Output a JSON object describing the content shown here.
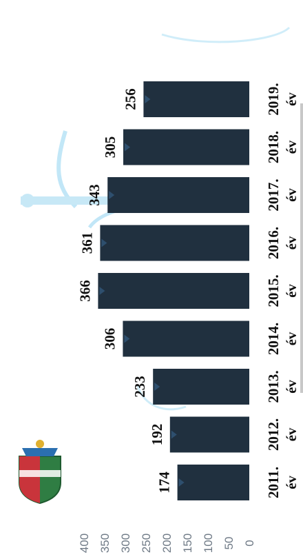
{
  "chart_data": {
    "type": "bar",
    "orientation": "rotated-90-ccw",
    "title": "",
    "categories": [
      "2011. év",
      "2012. év",
      "2013. év",
      "2014. év",
      "2015. év",
      "2016. év",
      "2017. év",
      "2018. év",
      "2019. év"
    ],
    "values": [
      174,
      192,
      233,
      306,
      366,
      361,
      343,
      305,
      256
    ],
    "data_labels": [
      "174",
      "192",
      "233",
      "306",
      "366",
      "361",
      "343",
      "305",
      "256"
    ],
    "ylim": [
      0,
      400
    ],
    "yticks": [
      0,
      50,
      100,
      150,
      200,
      250,
      300,
      350,
      400
    ],
    "ytick_labels": [
      "0",
      "50",
      "100",
      "150",
      "200",
      "250",
      "300",
      "350",
      "400"
    ],
    "grid": false,
    "colors": {
      "bar": "#20303f",
      "accent": "#2e4f6e",
      "watermark": "#6cc4ea"
    },
    "watermark": "town-crest-emblem"
  }
}
